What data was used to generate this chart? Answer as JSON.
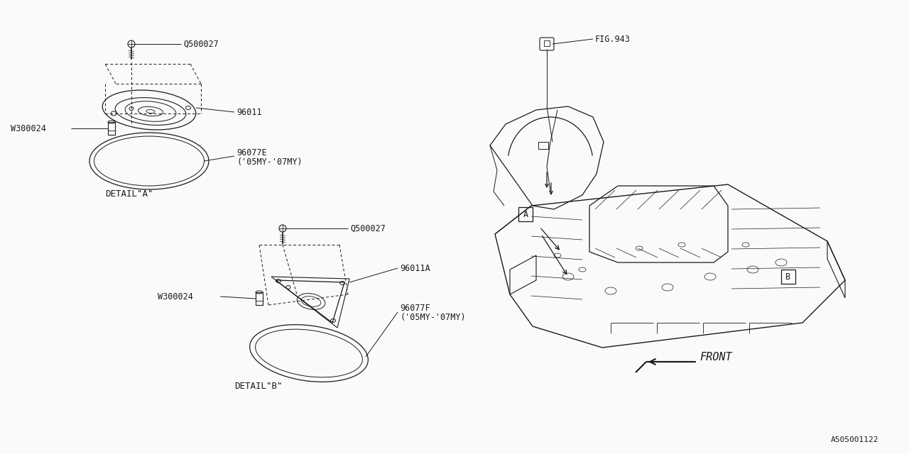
{
  "bg_color": "#FAFAFA",
  "line_color": "#1a1a1a",
  "fig_id": "A505001122",
  "parts": {
    "detail_a_label": "DETAIL\"A\"",
    "detail_b_label": "DETAIL\"B\"",
    "part_q500027": "Q500027",
    "part_w300024": "W300024",
    "part_96011": "96011",
    "part_96077e": "96077E",
    "part_96077e_note": "('05MY-'07MY)",
    "part_q500027b": "Q500027",
    "part_w300024b": "W300024",
    "part_96011a": "96011A",
    "part_96077f": "96077F",
    "part_96077f_note": "('05MY-'07MY)",
    "fig_943": "FIG.943",
    "label_a": "A",
    "label_b": "B",
    "front_label": "FRONT"
  },
  "font_size_small": 8,
  "font_size_part": 8.5,
  "font_size_detail": 9,
  "font_size_front": 11,
  "font_mono": "DejaVu Sans Mono"
}
